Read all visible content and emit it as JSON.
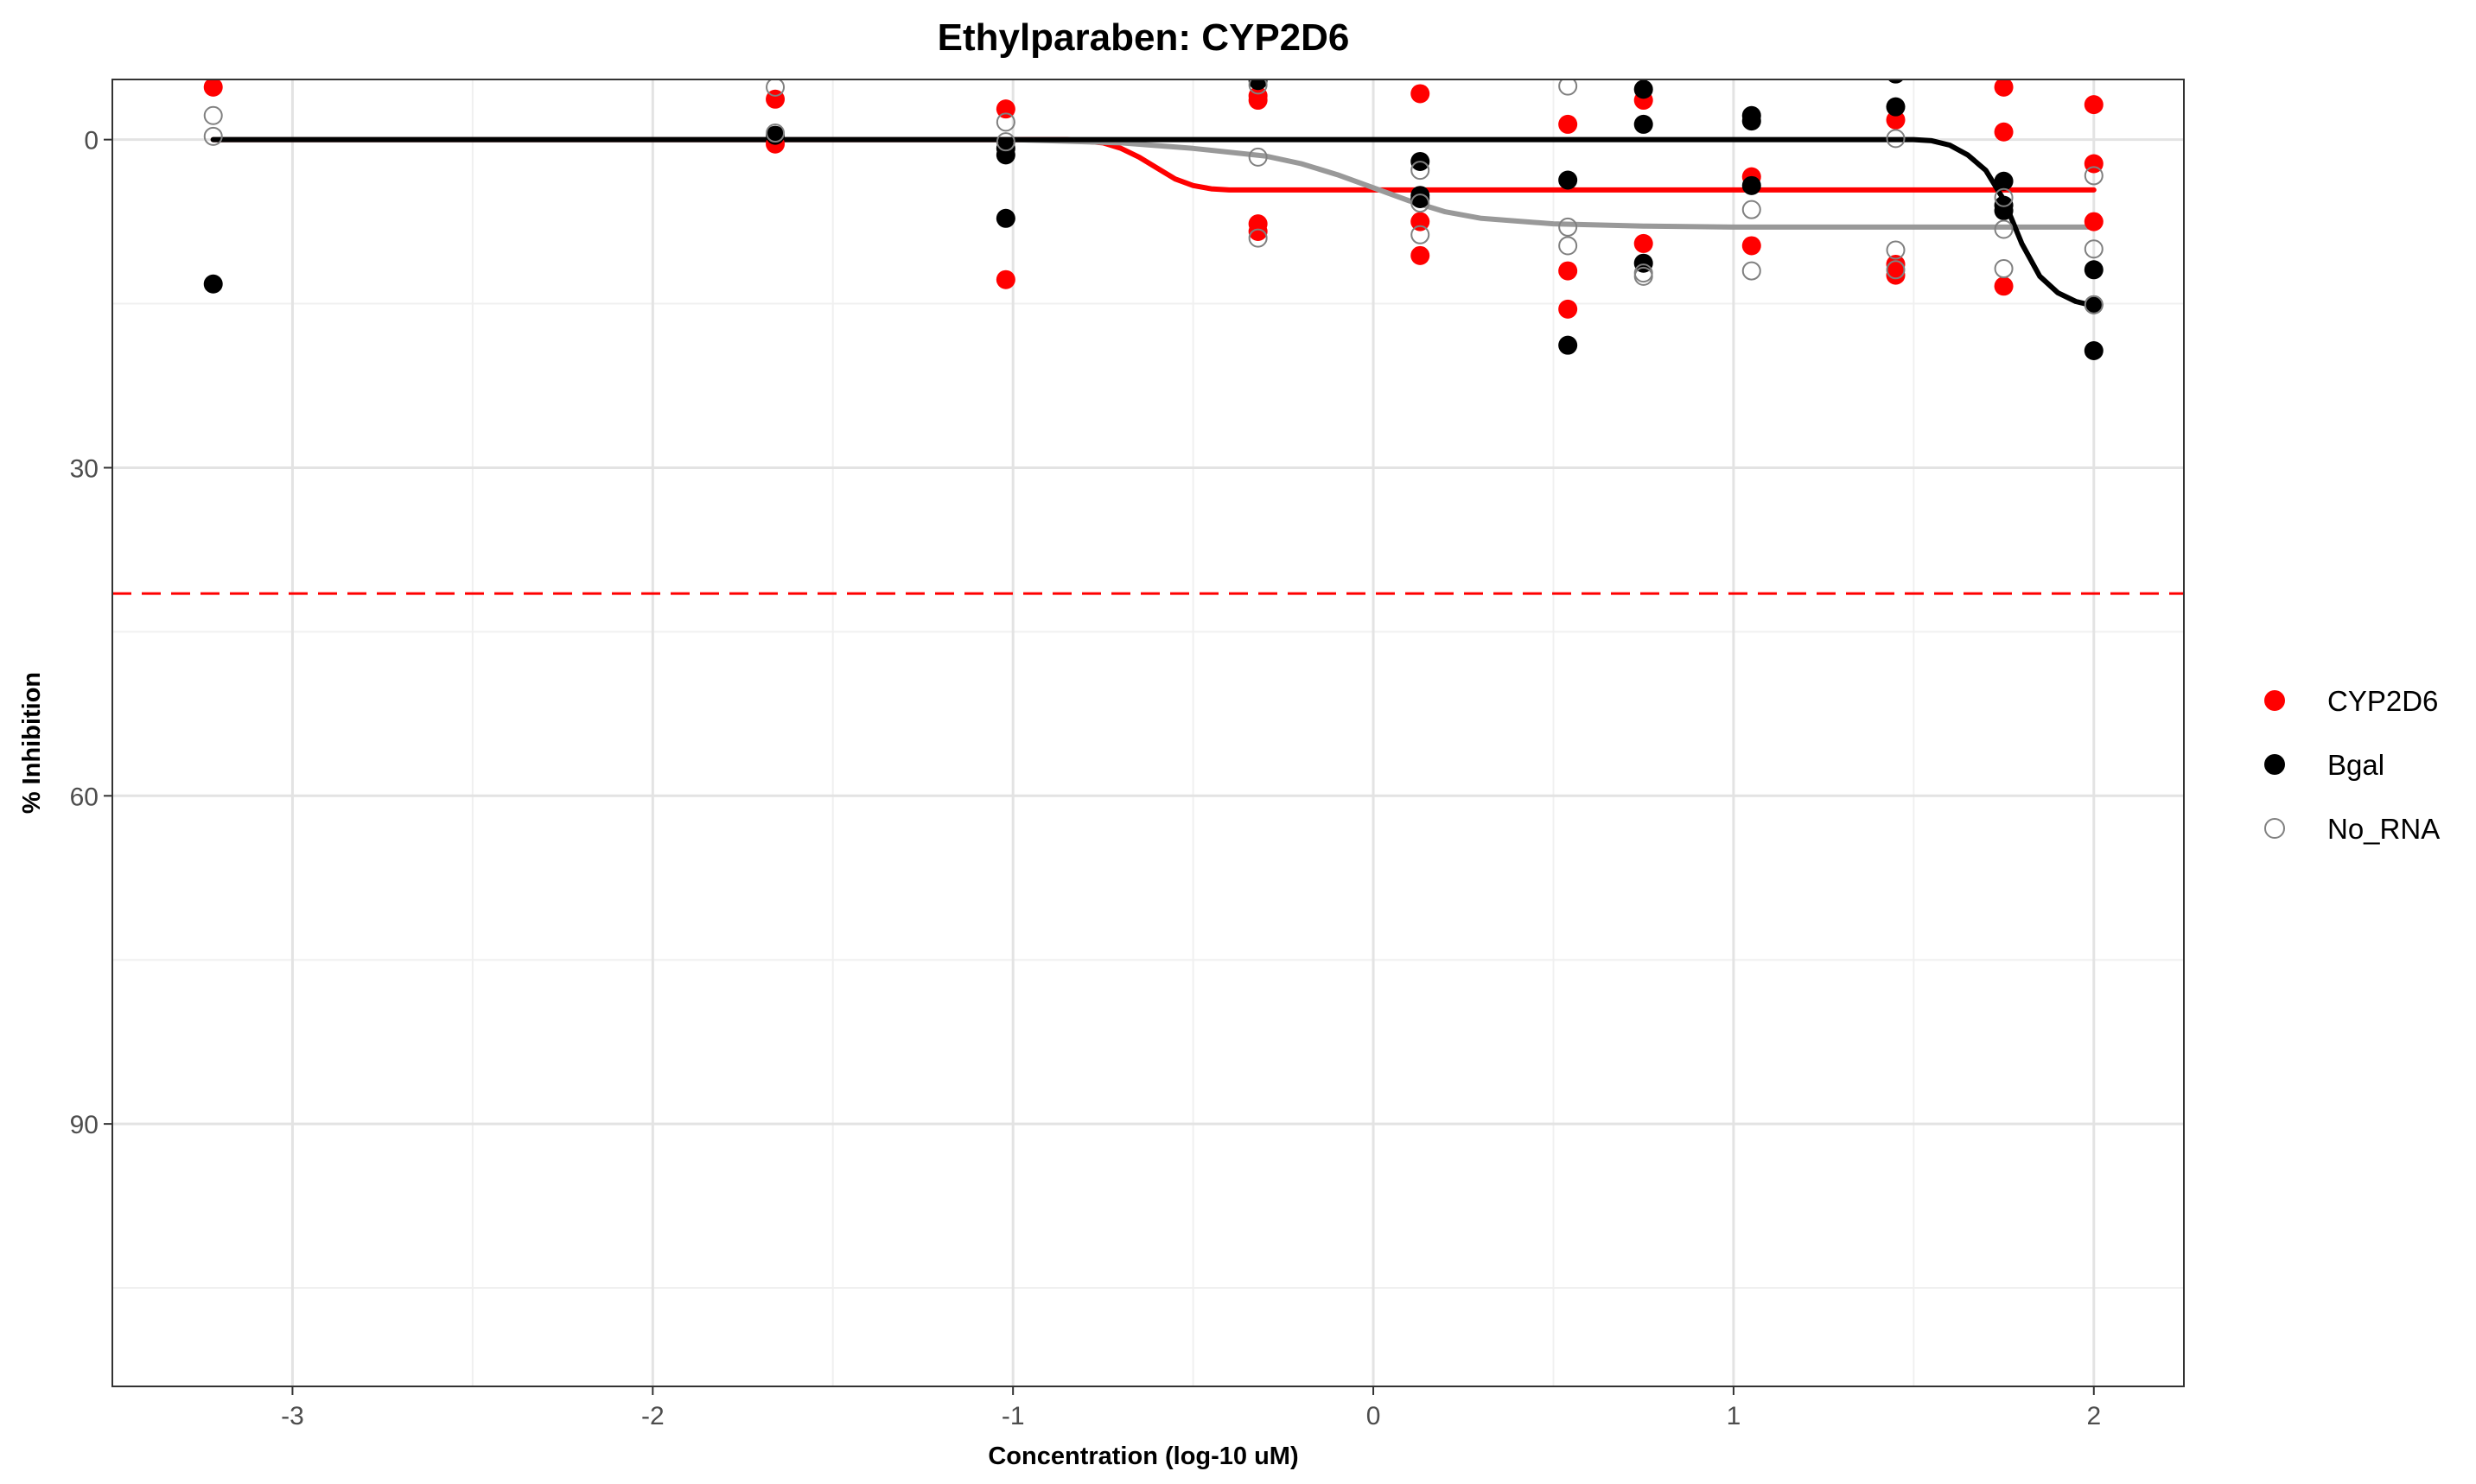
{
  "chart_data": {
    "type": "scatter",
    "title": "Ethylparaben: CYP2D6",
    "xlabel": "Concentration (log-10 uM)",
    "ylabel": "% Inhibition",
    "xlim": [
      -3.5,
      2.25
    ],
    "ylim": [
      114,
      -5.5
    ],
    "y_reversed": true,
    "x_ticks": [
      -3,
      -2,
      -1,
      0,
      1,
      2
    ],
    "x_tick_labels": [
      "-3",
      "-2",
      "-1",
      "0",
      "1",
      "2"
    ],
    "y_ticks": [
      0,
      30,
      60,
      90
    ],
    "y_tick_labels": [
      "0",
      "30",
      "60",
      "90"
    ],
    "grid": true,
    "legend_position": "right",
    "reference_line": {
      "y": 41.5,
      "color": "#ff0000",
      "style": "dashed"
    },
    "series": [
      {
        "name": "CYP2D6",
        "color": "#ff0000",
        "marker": "filled",
        "points": [
          [
            -3.22,
            -4.8
          ],
          [
            -1.66,
            -3.7
          ],
          [
            -1.66,
            0.4
          ],
          [
            -1.02,
            -2.8
          ],
          [
            -1.02,
            12.8
          ],
          [
            -0.32,
            -4.0
          ],
          [
            -0.32,
            -3.6
          ],
          [
            -0.32,
            7.7
          ],
          [
            -0.32,
            8.4
          ],
          [
            0.13,
            -4.2
          ],
          [
            0.13,
            7.5
          ],
          [
            0.13,
            10.6
          ],
          [
            0.54,
            -1.4
          ],
          [
            0.54,
            12.0
          ],
          [
            0.54,
            15.5
          ],
          [
            0.75,
            -3.6
          ],
          [
            0.75,
            9.5
          ],
          [
            1.05,
            3.4
          ],
          [
            1.05,
            9.7
          ],
          [
            1.45,
            -1.8
          ],
          [
            1.45,
            11.4
          ],
          [
            1.45,
            12.4
          ],
          [
            1.75,
            -4.8
          ],
          [
            1.75,
            -0.7
          ],
          [
            1.75,
            13.4
          ],
          [
            2.0,
            -3.2
          ],
          [
            2.0,
            2.2
          ],
          [
            2.0,
            7.5
          ]
        ],
        "curve": [
          [
            -3.22,
            0.0
          ],
          [
            -1.0,
            0.0
          ],
          [
            -0.85,
            0.0
          ],
          [
            -0.75,
            0.3
          ],
          [
            -0.7,
            0.8
          ],
          [
            -0.65,
            1.6
          ],
          [
            -0.6,
            2.6
          ],
          [
            -0.55,
            3.6
          ],
          [
            -0.5,
            4.2
          ],
          [
            -0.45,
            4.5
          ],
          [
            -0.4,
            4.6
          ],
          [
            -0.3,
            4.6
          ],
          [
            2.0,
            4.6
          ]
        ]
      },
      {
        "name": "Bgal",
        "color": "#000000",
        "marker": "filled",
        "points": [
          [
            -3.22,
            13.2
          ],
          [
            -1.66,
            -0.4
          ],
          [
            -1.02,
            0.8
          ],
          [
            -1.02,
            1.4
          ],
          [
            -1.02,
            7.2
          ],
          [
            -0.32,
            -5.4
          ],
          [
            0.13,
            2.0
          ],
          [
            0.13,
            5.1
          ],
          [
            0.13,
            5.4
          ],
          [
            0.54,
            3.7
          ],
          [
            0.54,
            18.8
          ],
          [
            0.75,
            -4.6
          ],
          [
            0.75,
            -1.4
          ],
          [
            0.75,
            11.3
          ],
          [
            1.05,
            -2.2
          ],
          [
            1.05,
            -1.7
          ],
          [
            1.05,
            4.2
          ],
          [
            1.45,
            -3.0
          ],
          [
            1.45,
            -6.0
          ],
          [
            1.75,
            3.8
          ],
          [
            1.75,
            6.0
          ],
          [
            1.75,
            6.5
          ],
          [
            2.0,
            11.9
          ],
          [
            2.0,
            15.1
          ],
          [
            2.0,
            19.3
          ]
        ],
        "curve": [
          [
            -3.22,
            0.0
          ],
          [
            1.5,
            0.0
          ],
          [
            1.55,
            0.1
          ],
          [
            1.6,
            0.5
          ],
          [
            1.65,
            1.4
          ],
          [
            1.7,
            2.8
          ],
          [
            1.75,
            5.5
          ],
          [
            1.8,
            9.5
          ],
          [
            1.85,
            12.5
          ],
          [
            1.9,
            14.0
          ],
          [
            1.95,
            14.8
          ],
          [
            2.0,
            15.2
          ]
        ]
      },
      {
        "name": "No_RNA",
        "color": "#808080",
        "marker": "open",
        "points": [
          [
            -3.22,
            -2.2
          ],
          [
            -3.22,
            -0.3
          ],
          [
            -1.66,
            -4.8
          ],
          [
            -1.66,
            -0.6
          ],
          [
            -1.02,
            -1.6
          ],
          [
            -1.02,
            0.2
          ],
          [
            -0.32,
            -5.0
          ],
          [
            -0.32,
            1.6
          ],
          [
            -0.32,
            9.0
          ],
          [
            0.13,
            2.8
          ],
          [
            0.13,
            5.8
          ],
          [
            0.13,
            8.7
          ],
          [
            0.54,
            -4.9
          ],
          [
            0.54,
            8.0
          ],
          [
            0.54,
            9.7
          ],
          [
            0.75,
            12.2
          ],
          [
            0.75,
            12.5
          ],
          [
            1.05,
            6.4
          ],
          [
            1.05,
            12.0
          ],
          [
            1.45,
            -0.1
          ],
          [
            1.45,
            10.1
          ],
          [
            1.45,
            11.9
          ],
          [
            1.75,
            5.3
          ],
          [
            1.75,
            8.2
          ],
          [
            1.75,
            11.8
          ],
          [
            2.0,
            3.3
          ],
          [
            2.0,
            10.0
          ],
          [
            2.0,
            15.1
          ]
        ],
        "curve": [
          [
            -3.22,
            0.0
          ],
          [
            -1.0,
            0.0
          ],
          [
            -0.7,
            0.3
          ],
          [
            -0.5,
            0.8
          ],
          [
            -0.3,
            1.5
          ],
          [
            -0.2,
            2.2
          ],
          [
            -0.1,
            3.2
          ],
          [
            0.0,
            4.4
          ],
          [
            0.1,
            5.6
          ],
          [
            0.2,
            6.6
          ],
          [
            0.3,
            7.2
          ],
          [
            0.5,
            7.7
          ],
          [
            0.75,
            7.9
          ],
          [
            1.0,
            8.0
          ],
          [
            2.0,
            8.0
          ]
        ]
      }
    ]
  }
}
